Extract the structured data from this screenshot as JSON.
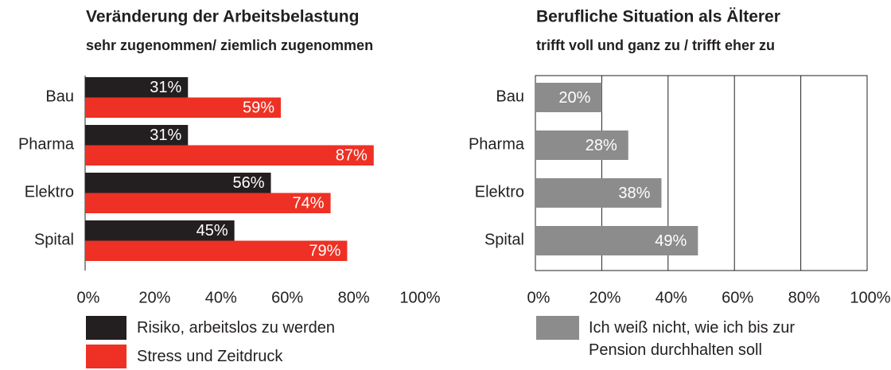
{
  "chart_data": [
    {
      "type": "bar",
      "orientation": "horizontal",
      "title": "Veränderung der Arbeitsbelastung",
      "subtitle": "sehr zugenommen/ ziemlich zugenommen",
      "categories": [
        "Bau",
        "Pharma",
        "Elektro",
        "Spital"
      ],
      "series": [
        {
          "name": "Risiko, arbeitslos zu werden",
          "color": "#231f20",
          "values": [
            31,
            31,
            56,
            45
          ],
          "value_labels": [
            "31%",
            "31%",
            "56%",
            "45%"
          ]
        },
        {
          "name": "Stress und Zeitdruck",
          "color": "#ee3124",
          "values": [
            59,
            87,
            74,
            79
          ],
          "value_labels": [
            "59%",
            "87%",
            "74%",
            "79%"
          ]
        }
      ],
      "xlim": [
        0,
        100
      ],
      "xticks": [
        {
          "value": 0,
          "label": "0%"
        },
        {
          "value": 20,
          "label": "20%"
        },
        {
          "value": 40,
          "label": "40%"
        },
        {
          "value": 60,
          "label": "60%"
        },
        {
          "value": 80,
          "label": "80%"
        },
        {
          "value": 100,
          "label": "100%"
        }
      ],
      "grid": false
    },
    {
      "type": "bar",
      "orientation": "horizontal",
      "title": "Berufliche Situation als Älterer",
      "subtitle": "trifft voll und ganz zu / trifft eher zu",
      "categories": [
        "Bau",
        "Pharma",
        "Elektro",
        "Spital"
      ],
      "series": [
        {
          "name": "Ich weiß nicht, wie ich bis zur Pension durchhalten soll",
          "color": "#8c8c8c",
          "values": [
            20,
            28,
            38,
            49
          ],
          "value_labels": [
            "20%",
            "28%",
            "38%",
            "49%"
          ]
        }
      ],
      "xlim": [
        0,
        100
      ],
      "xticks": [
        {
          "value": 0,
          "label": "0%"
        },
        {
          "value": 20,
          "label": "20%"
        },
        {
          "value": 40,
          "label": "40%"
        },
        {
          "value": 60,
          "label": "60%"
        },
        {
          "value": 80,
          "label": "80%"
        },
        {
          "value": 100,
          "label": "100%"
        }
      ],
      "grid": true
    }
  ]
}
